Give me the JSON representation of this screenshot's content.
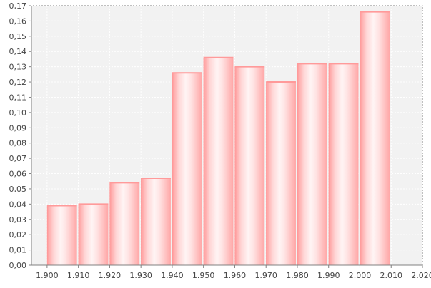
{
  "chart_data": {
    "type": "bar",
    "title": "",
    "xlabel": "",
    "ylabel": "",
    "xlim": [
      1895,
      2020
    ],
    "ylim": [
      0,
      0.17
    ],
    "x_ticks": [
      "1.900",
      "1.910",
      "1.920",
      "1.930",
      "1.940",
      "1.950",
      "1.960",
      "1.970",
      "1.980",
      "1.990",
      "2.000",
      "2.010",
      "2.020"
    ],
    "y_ticks": [
      "0,00",
      "0,01",
      "0,02",
      "0,03",
      "0,04",
      "0,05",
      "0,06",
      "0,07",
      "0,08",
      "0,09",
      "0,10",
      "0,11",
      "0,12",
      "0,13",
      "0,14",
      "0,15",
      "0,16",
      "0,17"
    ],
    "bars": [
      {
        "x0": 1900,
        "x1": 1910,
        "value": 0.039
      },
      {
        "x0": 1910,
        "x1": 1920,
        "value": 0.04
      },
      {
        "x0": 1920,
        "x1": 1930,
        "value": 0.054
      },
      {
        "x0": 1930,
        "x1": 1940,
        "value": 0.057
      },
      {
        "x0": 1940,
        "x1": 1950,
        "value": 0.126
      },
      {
        "x0": 1950,
        "x1": 1960,
        "value": 0.136
      },
      {
        "x0": 1960,
        "x1": 1970,
        "value": 0.13
      },
      {
        "x0": 1970,
        "x1": 1980,
        "value": 0.12
      },
      {
        "x0": 1980,
        "x1": 1990,
        "value": 0.132
      },
      {
        "x0": 1990,
        "x1": 2000,
        "value": 0.132
      },
      {
        "x0": 2000,
        "x1": 2010,
        "value": 0.166
      }
    ],
    "grid": true,
    "legend": "none",
    "colors": {
      "bar_edge": "#ff9a9a",
      "bar_light": "#ffffff",
      "plot_background": "#f2f2f2",
      "axis": "#888888"
    }
  }
}
